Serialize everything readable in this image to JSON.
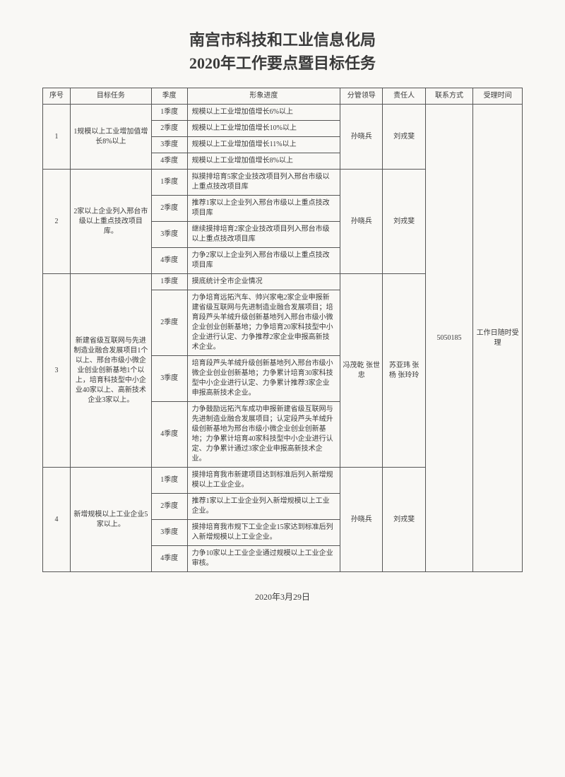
{
  "title_line1": "南宫市科技和工业信息化局",
  "title_line2": "2020年工作要点暨目标任务",
  "headers": {
    "seq": "序号",
    "task": "目标任务",
    "quarter": "季度",
    "progress": "形象进度",
    "leader": "分管领导",
    "responsible": "责任人",
    "contact": "联系方式",
    "accept_time": "受理时间"
  },
  "contact": "5050185",
  "accept_time": "工作日随时受理",
  "footer_date": "2020年3月29日",
  "tasks": [
    {
      "seq": "1",
      "task": "1规模以上工业增加值增长8%以上",
      "leader": "孙晓兵",
      "responsible": "刘戎斐",
      "rows": [
        {
          "q": "1季度",
          "p": "规模以上工业增加值增长6%以上"
        },
        {
          "q": "2季度",
          "p": "规模以上工业增加值增长10%以上"
        },
        {
          "q": "3季度",
          "p": "规模以上工业增加值增长11%以上"
        },
        {
          "q": "4季度",
          "p": "规模以上工业增加值增长8%以上"
        }
      ]
    },
    {
      "seq": "2",
      "task": "2家以上企业列入邢台市级以上重点技改项目库。",
      "leader": "孙晓兵",
      "responsible": "刘戎斐",
      "rows": [
        {
          "q": "1季度",
          "p": "拟摸排培育5家企业技改项目列入邢台市级以上重点技改项目库"
        },
        {
          "q": "2季度",
          "p": "推荐1家以上企业列入邢台市级以上重点技改项目库"
        },
        {
          "q": "3季度",
          "p": "继续摸排培育2家企业技改项目列入邢台市级以上重点技改项目库"
        },
        {
          "q": "4季度",
          "p": "力争2家以上企业列入邢台市级以上重点技改项目库"
        }
      ]
    },
    {
      "seq": "3",
      "task": "新建省级互联网与先进制造业融合发展项目1个以上、邢台市级小微企业创业创新基地1个以上，培育科技型中小企业40家以上、高新技术企业3家以上。",
      "leader": "冯茂乾 张世忠",
      "responsible": "苏亚玮 张 杨 张玲玲",
      "rows": [
        {
          "q": "1季度",
          "p": "摸底统计全市企业情况"
        },
        {
          "q": "2季度",
          "p": "力争培育远拓汽车、帅兴家电2家企业申报新建省级互联网与先进制造业融合发展项目；培育段芦头羊绒升级创新基地列入邢台市级小微企业创业创新基地；力争培育20家科技型中小企业进行认定、力争推荐2家企业申报高新技术企业。"
        },
        {
          "q": "3季度",
          "p": "培育段芦头羊绒升级创新基地列入邢台市级小微企业创业创新基地；力争累计培育30家科技型中小企业进行认定、力争累计推荐3家企业申报高新技术企业。"
        },
        {
          "q": "4季度",
          "p": "力争鼓励远拓汽车成功申报新建省级互联网与先进制造业融合发展项目；认定段芦头羊绒升级创新基地为邢台市级小微企业创业创新基地；力争累计培育40家科技型中小企业进行认定、力争累计通过3家企业申报高新技术企业。"
        }
      ]
    },
    {
      "seq": "4",
      "task": "新增规模以上工业企业5家以上。",
      "leader": "孙晓兵",
      "responsible": "刘戎斐",
      "rows": [
        {
          "q": "1季度",
          "p": "摸排培育我市新建项目达到标准后列入新增规模以上工业企业。"
        },
        {
          "q": "2季度",
          "p": "推荐1家以上工业企业列入新增规模以上工业企业。"
        },
        {
          "q": "3季度",
          "p": "摸排培育我市规下工业企业15家达到标准后列入新增规模以上工业企业。"
        },
        {
          "q": "4季度",
          "p": "力争10家以上工业企业通过规模以上工业企业审核。"
        }
      ]
    }
  ]
}
